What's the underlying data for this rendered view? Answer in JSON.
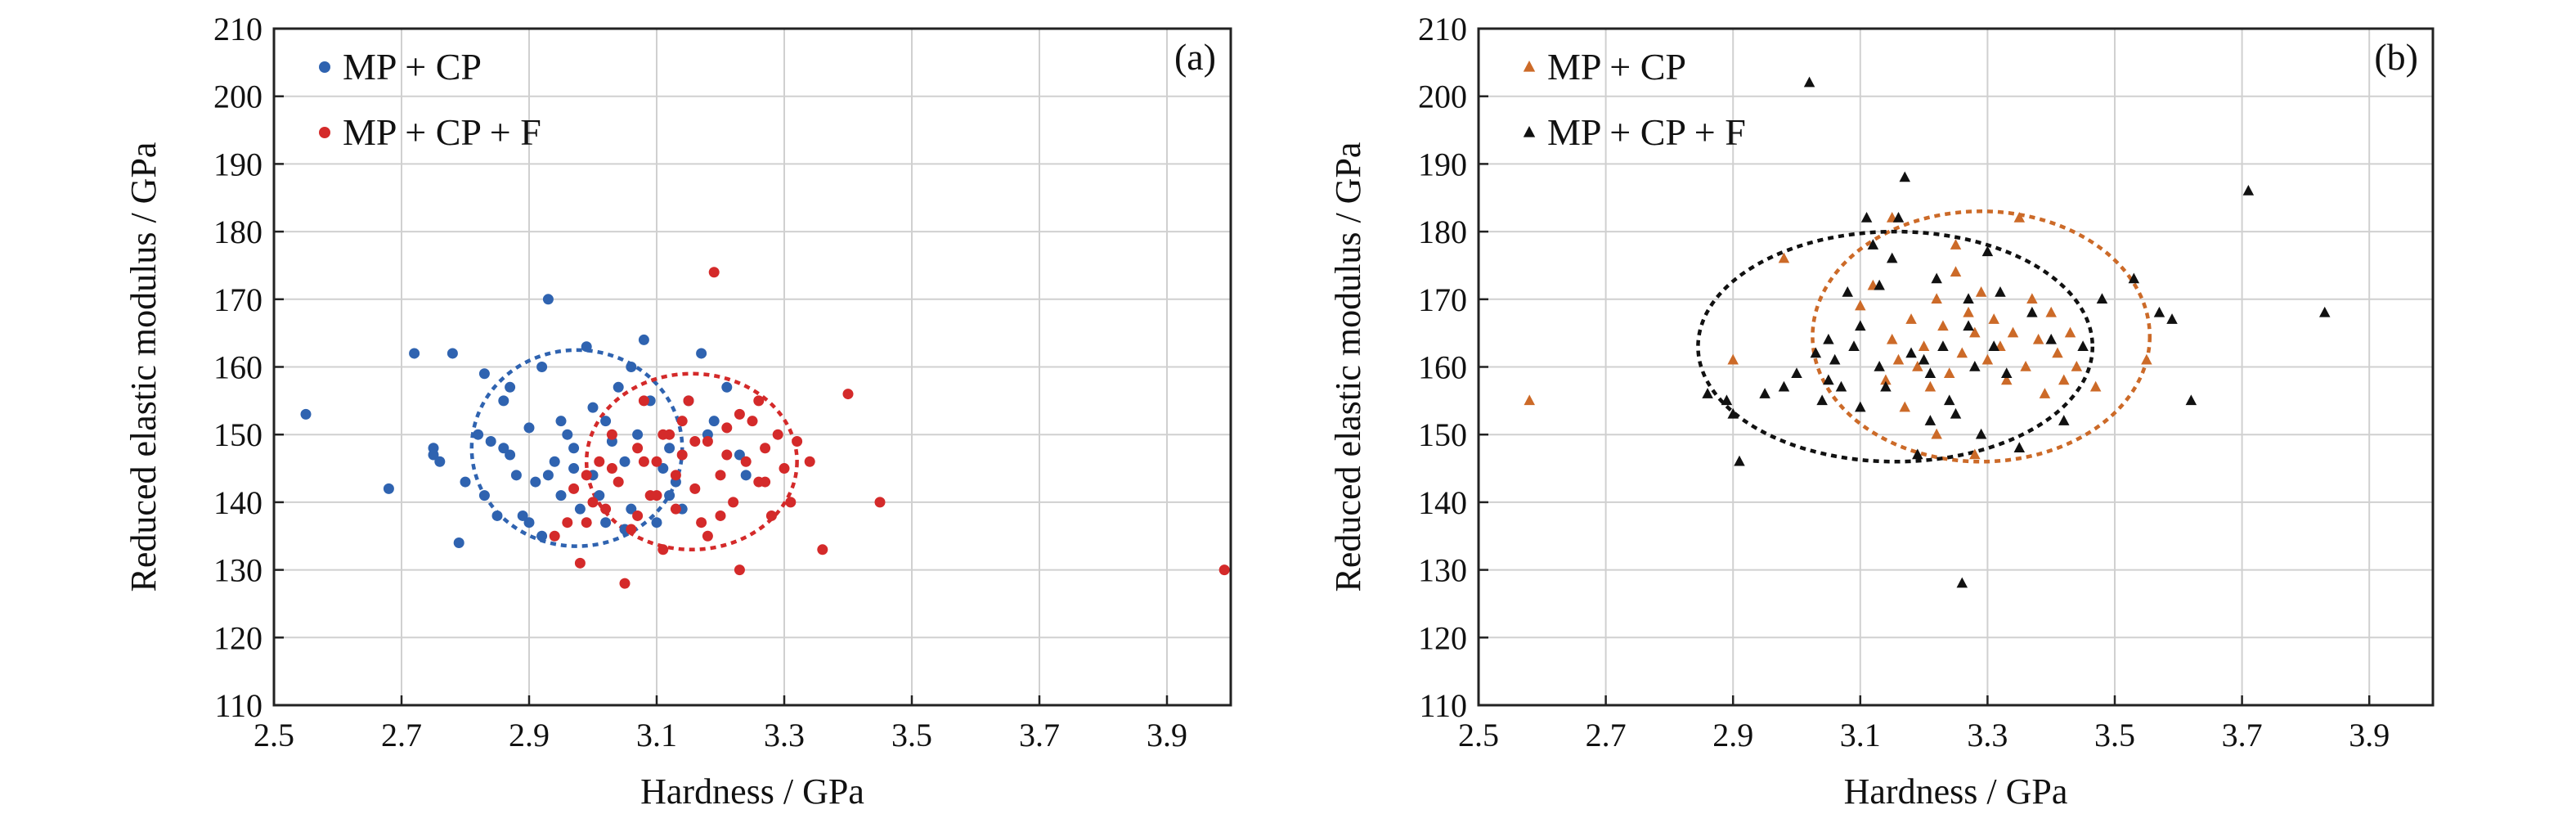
{
  "chart_data": [
    {
      "type": "scatter",
      "panel_label": "(a)",
      "xlabel": "Hardness / GPa",
      "ylabel": "Reduced elastic modulus / GPa",
      "xlim": [
        2.5,
        4.0
      ],
      "ylim": [
        110,
        210
      ],
      "xticks": [
        "2.5",
        "2.7",
        "2.9",
        "3.1",
        "3.3",
        "3.5",
        "3.7",
        "3.9"
      ],
      "yticks": [
        "110",
        "120",
        "130",
        "140",
        "150",
        "160",
        "170",
        "180",
        "190",
        "200",
        "210"
      ],
      "grid": true,
      "legend_position": "top-left",
      "series": [
        {
          "name": "MP + CP",
          "marker": "circle",
          "color": "#2f63b0",
          "ellipse": {
            "cx": 2.975,
            "cy": 148.0,
            "rx": 0.165,
            "ry": 14.5
          },
          "points": [
            [
              2.55,
              153
            ],
            [
              2.68,
              142
            ],
            [
              2.72,
              162
            ],
            [
              2.78,
              162
            ],
            [
              2.75,
              148
            ],
            [
              2.75,
              147
            ],
            [
              2.76,
              146
            ],
            [
              2.79,
              134
            ],
            [
              2.8,
              143
            ],
            [
              2.82,
              150
            ],
            [
              2.83,
              141
            ],
            [
              2.84,
              149
            ],
            [
              2.85,
              138
            ],
            [
              2.86,
              155
            ],
            [
              2.86,
              148
            ],
            [
              2.87,
              147
            ],
            [
              2.87,
              157
            ],
            [
              2.83,
              159
            ],
            [
              2.88,
              144
            ],
            [
              2.89,
              138
            ],
            [
              2.9,
              151
            ],
            [
              2.9,
              137
            ],
            [
              2.91,
              143
            ],
            [
              2.92,
              160
            ],
            [
              2.93,
              170
            ],
            [
              2.93,
              144
            ],
            [
              2.94,
              146
            ],
            [
              2.95,
              152
            ],
            [
              2.96,
              150
            ],
            [
              2.97,
              148
            ],
            [
              2.98,
              139
            ],
            [
              2.99,
              163
            ],
            [
              3.0,
              144
            ],
            [
              3.01,
              141
            ],
            [
              3.02,
              152
            ],
            [
              3.03,
              149
            ],
            [
              3.04,
              157
            ],
            [
              3.05,
              146
            ],
            [
              3.06,
              139
            ],
            [
              3.07,
              150
            ],
            [
              3.08,
              164
            ],
            [
              3.09,
              155
            ],
            [
              3.1,
              137
            ],
            [
              3.11,
              145
            ],
            [
              3.12,
              148
            ],
            [
              3.13,
              143
            ],
            [
              3.14,
              139
            ],
            [
              3.15,
              155
            ],
            [
              3.17,
              162
            ],
            [
              3.19,
              152
            ],
            [
              3.21,
              157
            ],
            [
              3.23,
              147
            ],
            [
              2.95,
              141
            ],
            [
              2.97,
              145
            ],
            [
              3.0,
              154
            ],
            [
              3.02,
              137
            ],
            [
              3.06,
              160
            ],
            [
              3.12,
              141
            ],
            [
              3.18,
              150
            ],
            [
              2.92,
              135
            ],
            [
              3.24,
              144
            ],
            [
              3.05,
              136
            ]
          ]
        },
        {
          "name": "MP + CP + F",
          "marker": "circle",
          "color": "#d42a2a",
          "ellipse": {
            "cx": 3.155,
            "cy": 146.0,
            "rx": 0.165,
            "ry": 13.0
          },
          "points": [
            [
              2.94,
              135
            ],
            [
              2.96,
              137
            ],
            [
              2.97,
              142
            ],
            [
              2.98,
              131
            ],
            [
              2.99,
              144
            ],
            [
              3.0,
              140
            ],
            [
              3.01,
              146
            ],
            [
              3.02,
              139
            ],
            [
              3.03,
              150
            ],
            [
              3.04,
              143
            ],
            [
              3.05,
              128
            ],
            [
              3.06,
              136
            ],
            [
              3.07,
              148
            ],
            [
              3.08,
              155
            ],
            [
              3.09,
              141
            ],
            [
              3.1,
              146
            ],
            [
              3.11,
              133
            ],
            [
              3.12,
              150
            ],
            [
              3.13,
              139
            ],
            [
              3.14,
              147
            ],
            [
              3.15,
              155
            ],
            [
              3.16,
              142
            ],
            [
              3.17,
              137
            ],
            [
              3.18,
              149
            ],
            [
              3.19,
              174
            ],
            [
              3.2,
              144
            ],
            [
              3.21,
              151
            ],
            [
              3.22,
              140
            ],
            [
              3.23,
              130
            ],
            [
              3.24,
              146
            ],
            [
              3.25,
              152
            ],
            [
              3.26,
              143
            ],
            [
              3.27,
              148
            ],
            [
              3.28,
              138
            ],
            [
              3.29,
              150
            ],
            [
              3.3,
              145
            ],
            [
              3.31,
              140
            ],
            [
              3.36,
              133
            ],
            [
              3.4,
              156
            ],
            [
              3.45,
              140
            ],
            [
              3.99,
              130
            ],
            [
              3.03,
              145
            ],
            [
              3.07,
              138
            ],
            [
              3.11,
              150
            ],
            [
              3.13,
              144
            ],
            [
              3.16,
              149
            ],
            [
              3.2,
              138
            ],
            [
              3.23,
              153
            ],
            [
              3.27,
              143
            ],
            [
              3.32,
              149
            ],
            [
              3.1,
              141
            ],
            [
              3.14,
              152
            ],
            [
              3.18,
              135
            ],
            [
              2.99,
              137
            ],
            [
              3.21,
              147
            ],
            [
              3.08,
              146
            ],
            [
              3.26,
              155
            ],
            [
              3.34,
              146
            ]
          ]
        }
      ]
    },
    {
      "type": "scatter",
      "panel_label": "(b)",
      "xlabel": "Hardness / GPa",
      "ylabel": "Reduced elastic modulus / GPa",
      "xlim": [
        2.5,
        4.0
      ],
      "ylim": [
        110,
        210
      ],
      "xticks": [
        "2.5",
        "2.7",
        "2.9",
        "3.1",
        "3.3",
        "3.5",
        "3.7",
        "3.9"
      ],
      "yticks": [
        "110",
        "120",
        "130",
        "140",
        "150",
        "160",
        "170",
        "180",
        "190",
        "200",
        "210"
      ],
      "grid": true,
      "legend_position": "top-left",
      "series": [
        {
          "name": "MP + CP",
          "marker": "triangle",
          "color": "#cc6a28",
          "ellipse": {
            "cx": 3.29,
            "cy": 164.5,
            "rx": 0.265,
            "ry": 18.5
          },
          "points": [
            [
              2.58,
              155
            ],
            [
              2.9,
              161
            ],
            [
              2.98,
              176
            ],
            [
              3.1,
              169
            ],
            [
              3.12,
              172
            ],
            [
              3.14,
              158
            ],
            [
              3.15,
              164
            ],
            [
              3.16,
              161
            ],
            [
              3.17,
              154
            ],
            [
              3.18,
              167
            ],
            [
              3.19,
              160
            ],
            [
              3.2,
              163
            ],
            [
              3.21,
              157
            ],
            [
              3.22,
              170
            ],
            [
              3.23,
              166
            ],
            [
              3.24,
              159
            ],
            [
              3.25,
              174
            ],
            [
              3.26,
              162
            ],
            [
              3.27,
              168
            ],
            [
              3.28,
              165
            ],
            [
              3.29,
              171
            ],
            [
              3.3,
              161
            ],
            [
              3.31,
              167
            ],
            [
              3.32,
              163
            ],
            [
              3.33,
              158
            ],
            [
              3.34,
              165
            ],
            [
              3.35,
              182
            ],
            [
              3.36,
              160
            ],
            [
              3.37,
              170
            ],
            [
              3.38,
              164
            ],
            [
              3.39,
              156
            ],
            [
              3.4,
              168
            ],
            [
              3.41,
              162
            ],
            [
              3.42,
              158
            ],
            [
              3.43,
              165
            ],
            [
              3.44,
              160
            ],
            [
              3.47,
              157
            ],
            [
              3.55,
              161
            ],
            [
              3.25,
              178
            ],
            [
              3.22,
              150
            ],
            [
              3.15,
              182
            ],
            [
              3.28,
              147
            ]
          ]
        },
        {
          "name": "MP + CP + F",
          "marker": "triangle",
          "color": "#111111",
          "ellipse": {
            "cx": 3.155,
            "cy": 163.0,
            "rx": 0.31,
            "ry": 17.0
          },
          "points": [
            [
              2.86,
              156
            ],
            [
              2.89,
              155
            ],
            [
              2.9,
              153
            ],
            [
              2.91,
              146
            ],
            [
              2.95,
              156
            ],
            [
              2.98,
              157
            ],
            [
              3.0,
              159
            ],
            [
              3.02,
              202
            ],
            [
              3.03,
              162
            ],
            [
              3.04,
              155
            ],
            [
              3.05,
              164
            ],
            [
              3.06,
              161
            ],
            [
              3.07,
              157
            ],
            [
              3.08,
              171
            ],
            [
              3.09,
              163
            ],
            [
              3.1,
              166
            ],
            [
              3.11,
              182
            ],
            [
              3.12,
              178
            ],
            [
              3.13,
              160
            ],
            [
              3.14,
              157
            ],
            [
              3.15,
              176
            ],
            [
              3.16,
              182
            ],
            [
              3.17,
              188
            ],
            [
              3.18,
              162
            ],
            [
              3.19,
              147
            ],
            [
              3.2,
              161
            ],
            [
              3.21,
              159
            ],
            [
              3.22,
              173
            ],
            [
              3.23,
              163
            ],
            [
              3.24,
              155
            ],
            [
              3.25,
              153
            ],
            [
              3.26,
              128
            ],
            [
              3.27,
              166
            ],
            [
              3.28,
              160
            ],
            [
              3.29,
              150
            ],
            [
              3.3,
              177
            ],
            [
              3.31,
              163
            ],
            [
              3.32,
              171
            ],
            [
              3.33,
              159
            ],
            [
              3.37,
              168
            ],
            [
              3.4,
              164
            ],
            [
              3.42,
              152
            ],
            [
              3.45,
              163
            ],
            [
              3.48,
              170
            ],
            [
              3.53,
              173
            ],
            [
              3.57,
              168
            ],
            [
              3.59,
              167
            ],
            [
              3.62,
              155
            ],
            [
              3.71,
              186
            ],
            [
              3.83,
              168
            ],
            [
              3.05,
              158
            ],
            [
              3.13,
              172
            ],
            [
              3.21,
              152
            ],
            [
              3.35,
              148
            ],
            [
              3.1,
              154
            ],
            [
              3.27,
              170
            ]
          ]
        }
      ]
    }
  ]
}
